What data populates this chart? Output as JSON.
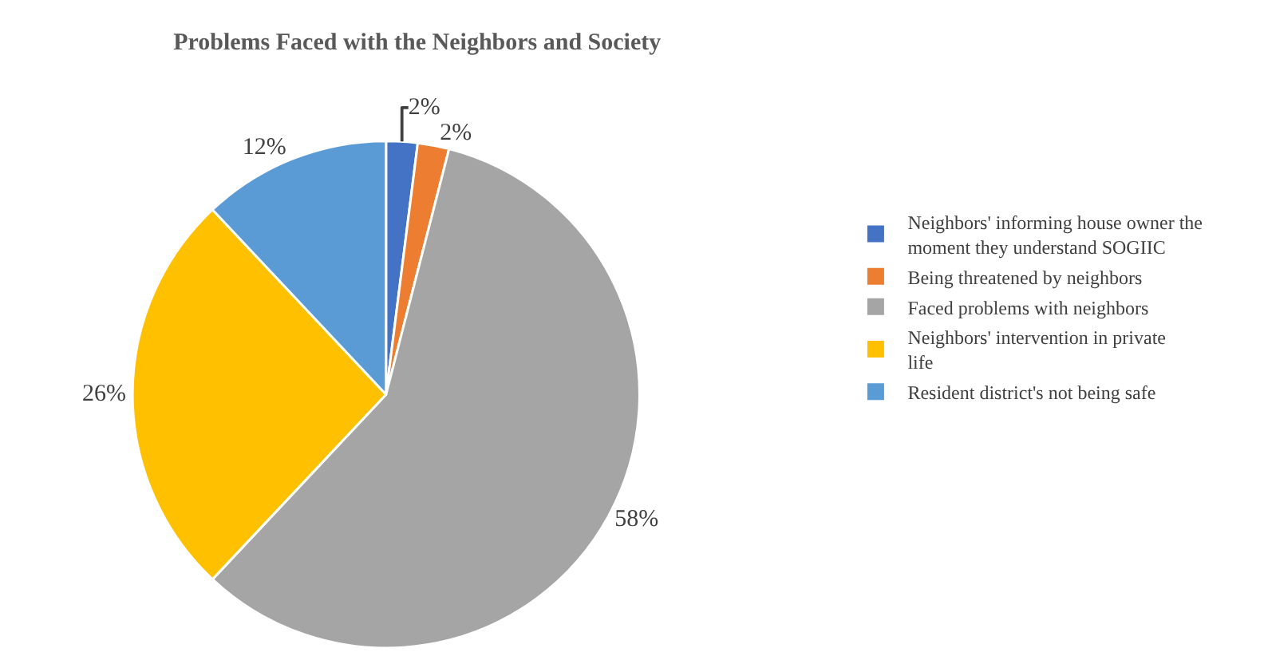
{
  "chart_data": {
    "type": "pie",
    "title": "Problems Faced with the Neighbors and Society",
    "categories": [
      "Neighbors' informing house owner the moment they understand SOGIIC",
      "Being threatened by neighbors",
      "Faced problems with neighbors",
      "Neighbors' intervention in private life",
      "Resident district's not being safe"
    ],
    "values": [
      2,
      2,
      58,
      26,
      12
    ],
    "value_labels": [
      "2%",
      "2%",
      "58%",
      "26%",
      "12%"
    ],
    "colors": [
      "#4472c4",
      "#ed7d31",
      "#a5a5a5",
      "#ffc000",
      "#5b9bd5"
    ],
    "legend": "right"
  }
}
